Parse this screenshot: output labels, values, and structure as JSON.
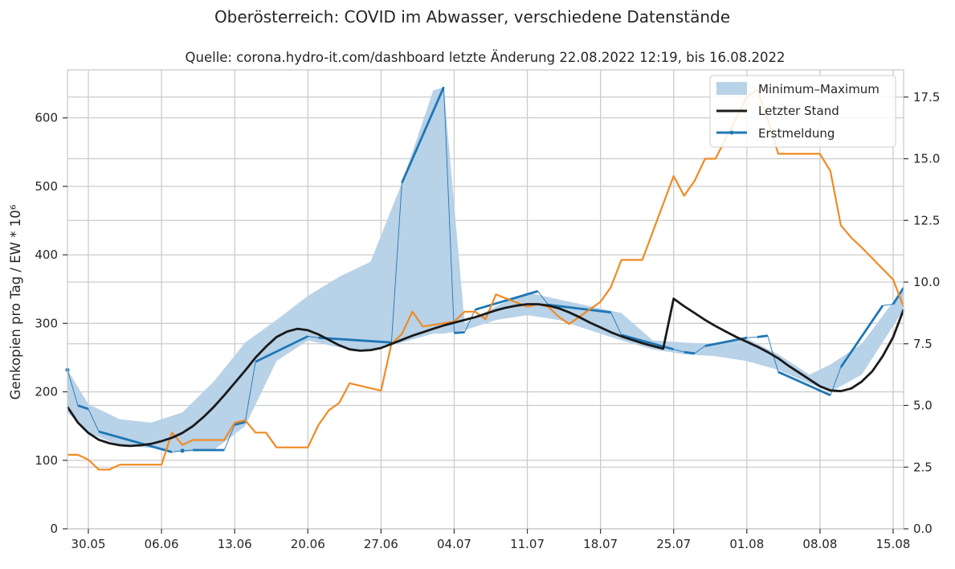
{
  "chart_data": {
    "type": "line",
    "suptitle": "Oberösterreich: COVID im Abwasser, verschiedene Datenstände",
    "title": "Quelle: corona.hydro-it.com/dashboard letzte Änderung 22.08.2022 12:19, bis 16.08.2022",
    "ylabel": "Genkopien pro Tag / EW * 10⁶",
    "x_tick_labels": [
      "30.05",
      "06.06",
      "13.06",
      "20.06",
      "27.06",
      "04.07",
      "11.07",
      "18.07",
      "25.07",
      "01.08",
      "08.08",
      "15.08"
    ],
    "x_range": [
      "2022-05-28",
      "2022-08-16"
    ],
    "y_left": {
      "range": [
        0,
        670
      ],
      "ticks": [
        0,
        100,
        200,
        300,
        400,
        500,
        600
      ]
    },
    "y_right": {
      "range": [
        0,
        18.6
      ],
      "ticks": [
        "0.0",
        "2.5",
        "5.0",
        "7.5",
        "10.0",
        "12.5",
        "15.0",
        "17.5"
      ]
    },
    "grid": true,
    "legend": {
      "placement": "top-right",
      "entries": [
        "Minimum–Maximum",
        "Letzter Stand",
        "Erstmeldung"
      ]
    },
    "colors": {
      "band": "#b8d2e8",
      "letzter_stand": "#1a1a1a",
      "erstmeldung": "#1f77b4",
      "right_series": "#f08a24",
      "grid": "#cccccc"
    },
    "series": [
      {
        "name": "Minimum–Maximum",
        "kind": "band",
        "axis": "left",
        "x": [
          "2022-05-28",
          "2022-05-30",
          "2022-06-02",
          "2022-06-05",
          "2022-06-08",
          "2022-06-11",
          "2022-06-14",
          "2022-06-17",
          "2022-06-20",
          "2022-06-23",
          "2022-06-26",
          "2022-06-29",
          "2022-07-02",
          "2022-07-03",
          "2022-07-05",
          "2022-07-08",
          "2022-07-11",
          "2022-07-14",
          "2022-07-17",
          "2022-07-20",
          "2022-07-23",
          "2022-07-26",
          "2022-07-29",
          "2022-08-01",
          "2022-08-04",
          "2022-08-07",
          "2022-08-09",
          "2022-08-12",
          "2022-08-16"
        ],
        "upper": [
          232,
          182,
          160,
          155,
          170,
          215,
          272,
          305,
          340,
          368,
          390,
          505,
          640,
          645,
          300,
          325,
          345,
          335,
          325,
          315,
          275,
          272,
          270,
          278,
          255,
          225,
          240,
          270,
          352
        ],
        "lower": [
          170,
          140,
          122,
          118,
          112,
          115,
          150,
          245,
          275,
          265,
          260,
          272,
          285,
          285,
          290,
          305,
          312,
          305,
          290,
          275,
          262,
          255,
          252,
          245,
          232,
          212,
          200,
          225,
          320
        ]
      },
      {
        "name": "Letzter Stand",
        "axis": "left",
        "x": [
          "2022-05-28",
          "2022-05-29",
          "2022-05-30",
          "2022-05-31",
          "2022-06-01",
          "2022-06-02",
          "2022-06-03",
          "2022-06-04",
          "2022-06-05",
          "2022-06-06",
          "2022-06-07",
          "2022-06-08",
          "2022-06-09",
          "2022-06-10",
          "2022-06-11",
          "2022-06-12",
          "2022-06-13",
          "2022-06-14",
          "2022-06-15",
          "2022-06-16",
          "2022-06-17",
          "2022-06-18",
          "2022-06-19",
          "2022-06-20",
          "2022-06-21",
          "2022-06-22",
          "2022-06-23",
          "2022-06-24",
          "2022-06-25",
          "2022-06-26",
          "2022-06-27",
          "2022-06-28",
          "2022-06-29",
          "2022-06-30",
          "2022-07-01",
          "2022-07-02",
          "2022-07-03",
          "2022-07-04",
          "2022-07-05",
          "2022-07-06",
          "2022-07-07",
          "2022-07-08",
          "2022-07-09",
          "2022-07-10",
          "2022-07-11",
          "2022-07-12",
          "2022-07-13",
          "2022-07-14",
          "2022-07-15",
          "2022-07-16",
          "2022-07-17",
          "2022-07-18",
          "2022-07-19",
          "2022-07-20",
          "2022-07-21",
          "2022-07-22",
          "2022-07-23",
          "2022-07-24",
          "2022-07-25",
          "2022-07-26",
          "2022-07-27",
          "2022-07-28",
          "2022-07-29",
          "2022-07-30",
          "2022-07-31",
          "2022-08-01",
          "2022-08-02",
          "2022-08-03",
          "2022-08-04",
          "2022-08-05",
          "2022-08-06",
          "2022-08-07",
          "2022-08-08",
          "2022-08-09",
          "2022-08-10",
          "2022-08-11",
          "2022-08-12",
          "2022-08-13",
          "2022-08-14",
          "2022-08-15",
          "2022-08-16"
        ],
        "values": [
          178,
          155,
          140,
          130,
          125,
          122,
          121,
          122,
          124,
          128,
          133,
          140,
          150,
          163,
          178,
          195,
          213,
          231,
          250,
          266,
          280,
          288,
          292,
          290,
          284,
          276,
          268,
          262,
          260,
          261,
          264,
          270,
          276,
          282,
          287,
          292,
          297,
          301,
          305,
          309,
          314,
          319,
          323,
          326,
          328,
          328,
          326,
          322,
          316,
          309,
          301,
          294,
          287,
          281,
          276,
          271,
          267,
          263,
          336,
          325,
          315,
          305,
          296,
          288,
          280,
          273,
          266,
          258,
          249,
          238,
          228,
          218,
          208,
          202,
          201,
          205,
          215,
          230,
          252,
          280,
          320
        ]
      },
      {
        "name": "Erstmeldung",
        "axis": "left",
        "segments": [
          {
            "x": [
              "2022-05-28"
            ],
            "values": [
              232
            ]
          },
          {
            "x": [
              "2022-05-29",
              "2022-05-30"
            ],
            "values": [
              180,
              175
            ]
          },
          {
            "x": [
              "2022-05-31",
              "2022-06-07"
            ],
            "values": [
              142,
              112
            ]
          },
          {
            "x": [
              "2022-06-08"
            ],
            "values": [
              114
            ]
          },
          {
            "x": [
              "2022-06-09",
              "2022-06-12"
            ],
            "values": [
              115,
              115
            ]
          },
          {
            "x": [
              "2022-06-13",
              "2022-06-14"
            ],
            "values": [
              152,
              156
            ]
          },
          {
            "x": [
              "2022-06-15",
              "2022-06-20"
            ],
            "values": [
              244,
              281
            ]
          },
          {
            "x": [
              "2022-06-21",
              "2022-06-28"
            ],
            "values": [
              279,
              272
            ]
          },
          {
            "x": [
              "2022-06-29",
              "2022-07-03"
            ],
            "values": [
              505,
              645
            ]
          },
          {
            "x": [
              "2022-07-04",
              "2022-07-05"
            ],
            "values": [
              286,
              287
            ]
          },
          {
            "x": [
              "2022-07-06",
              "2022-07-12"
            ],
            "values": [
              320,
              347
            ]
          },
          {
            "x": [
              "2022-07-13",
              "2022-07-19"
            ],
            "values": [
              327,
              316
            ]
          },
          {
            "x": [
              "2022-07-20",
              "2022-07-25"
            ],
            "values": [
              283,
              262
            ]
          },
          {
            "x": [
              "2022-07-26",
              "2022-07-27"
            ],
            "values": [
              258,
              256
            ]
          },
          {
            "x": [
              "2022-07-28",
              "2022-08-01"
            ],
            "values": [
              267,
              279
            ]
          },
          {
            "x": [
              "2022-08-02",
              "2022-08-03"
            ],
            "values": [
              280,
              282
            ]
          },
          {
            "x": [
              "2022-08-04",
              "2022-08-09"
            ],
            "values": [
              229,
              195
            ]
          },
          {
            "x": [
              "2022-08-10",
              "2022-08-14"
            ],
            "values": [
              236,
              326
            ]
          },
          {
            "x": [
              "2022-08-15",
              "2022-08-16"
            ],
            "values": [
              328,
              352
            ]
          }
        ]
      },
      {
        "axis": "right",
        "kind": "step-line",
        "x": [
          "2022-05-28",
          "2022-05-29",
          "2022-05-30",
          "2022-05-31",
          "2022-06-01",
          "2022-06-02",
          "2022-06-03",
          "2022-06-06",
          "2022-06-07",
          "2022-06-08",
          "2022-06-09",
          "2022-06-12",
          "2022-06-13",
          "2022-06-14",
          "2022-06-15",
          "2022-06-16",
          "2022-06-17",
          "2022-06-20",
          "2022-06-21",
          "2022-06-22",
          "2022-06-23",
          "2022-06-24",
          "2022-06-27",
          "2022-06-28",
          "2022-06-29",
          "2022-06-30",
          "2022-07-01",
          "2022-07-04",
          "2022-07-05",
          "2022-07-06",
          "2022-07-07",
          "2022-07-08",
          "2022-07-11",
          "2022-07-12",
          "2022-07-13",
          "2022-07-14",
          "2022-07-15",
          "2022-07-18",
          "2022-07-19",
          "2022-07-20",
          "2022-07-21",
          "2022-07-22",
          "2022-07-25",
          "2022-07-26",
          "2022-07-27",
          "2022-07-28",
          "2022-07-29",
          "2022-08-01",
          "2022-08-02",
          "2022-08-03",
          "2022-08-04",
          "2022-08-05",
          "2022-08-08",
          "2022-08-09",
          "2022-08-10",
          "2022-08-11",
          "2022-08-12",
          "2022-08-15",
          "2022-08-16"
        ],
        "values": [
          3.0,
          3.0,
          2.8,
          2.4,
          2.4,
          2.6,
          2.6,
          2.6,
          3.9,
          3.4,
          3.6,
          3.6,
          4.3,
          4.4,
          3.9,
          3.9,
          3.3,
          3.3,
          4.2,
          4.8,
          5.1,
          5.9,
          5.6,
          7.5,
          7.9,
          8.8,
          8.2,
          8.4,
          8.8,
          8.8,
          8.5,
          9.5,
          9.0,
          9.1,
          9.0,
          8.6,
          8.3,
          9.2,
          9.8,
          10.9,
          10.9,
          10.9,
          14.3,
          13.5,
          14.1,
          15.0,
          15.0,
          17.5,
          17.8,
          16.6,
          15.2,
          15.2,
          15.2,
          14.5,
          12.3,
          11.8,
          11.4,
          10.1,
          9.0
        ]
      }
    ]
  }
}
